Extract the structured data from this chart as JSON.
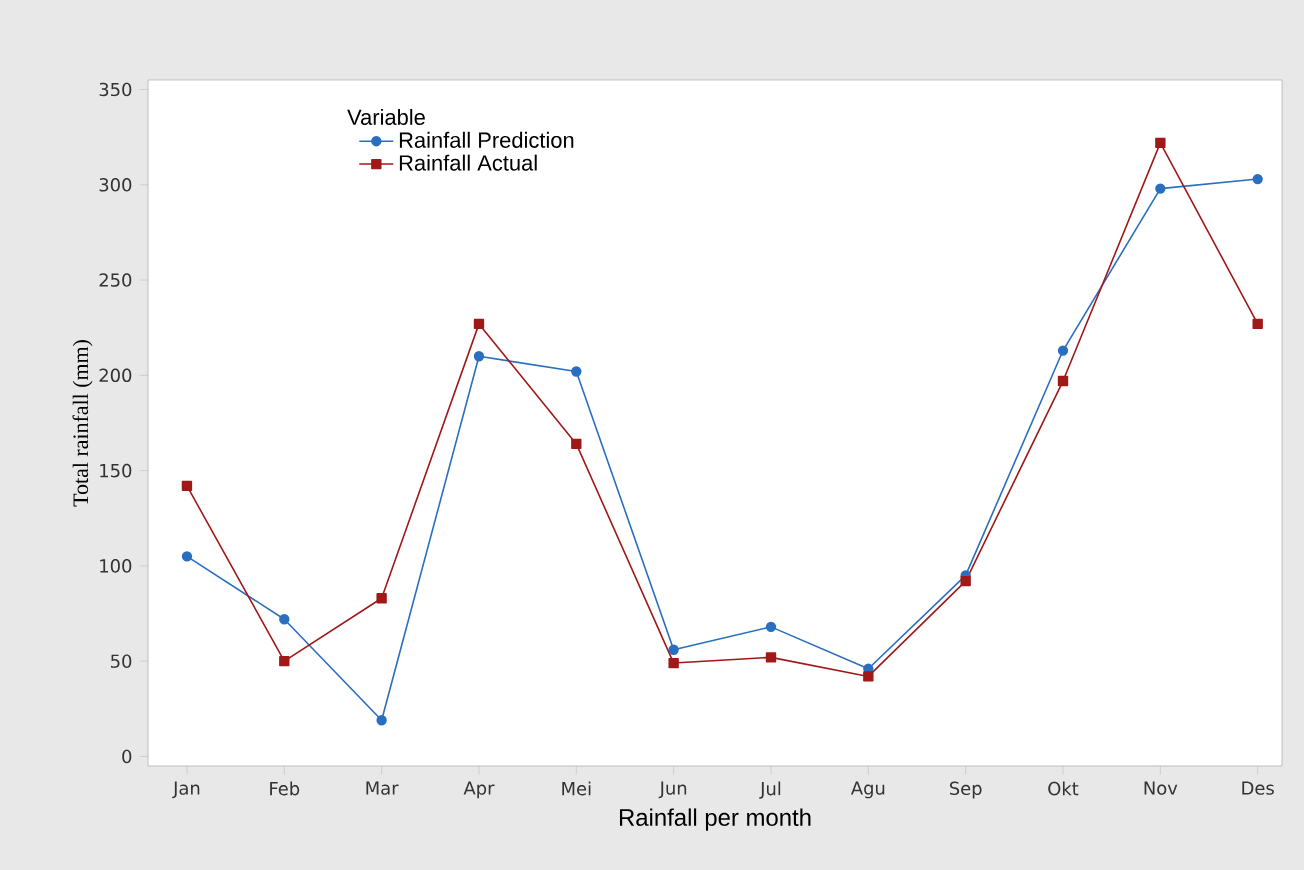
{
  "chart_data": {
    "type": "line",
    "xlabel": "Rainfall per month",
    "ylabel": "Total rainfall (mm)",
    "legend_title": "Variable",
    "legend": "top",
    "categories": [
      "Jan",
      "Feb",
      "Mar",
      "Apr",
      "Mei",
      "Jun",
      "Jul",
      "Agu",
      "Sep",
      "Okt",
      "Nov",
      "Des"
    ],
    "ylim": [
      -5,
      355
    ],
    "yticks": [
      0,
      50,
      100,
      150,
      200,
      250,
      300,
      350
    ],
    "grid": false,
    "line_style": "solid",
    "series": [
      {
        "name": "Rainfall Prediction",
        "color": "#2a6ebf",
        "marker": "circle",
        "values": [
          105,
          72,
          19,
          210,
          202,
          56,
          68,
          46,
          95,
          213,
          298,
          303
        ]
      },
      {
        "name": "Rainfall Actual",
        "color": "#a01818",
        "marker": "square",
        "values": [
          142,
          50,
          83,
          227,
          164,
          49,
          52,
          42,
          92,
          197,
          322,
          227
        ]
      }
    ]
  }
}
